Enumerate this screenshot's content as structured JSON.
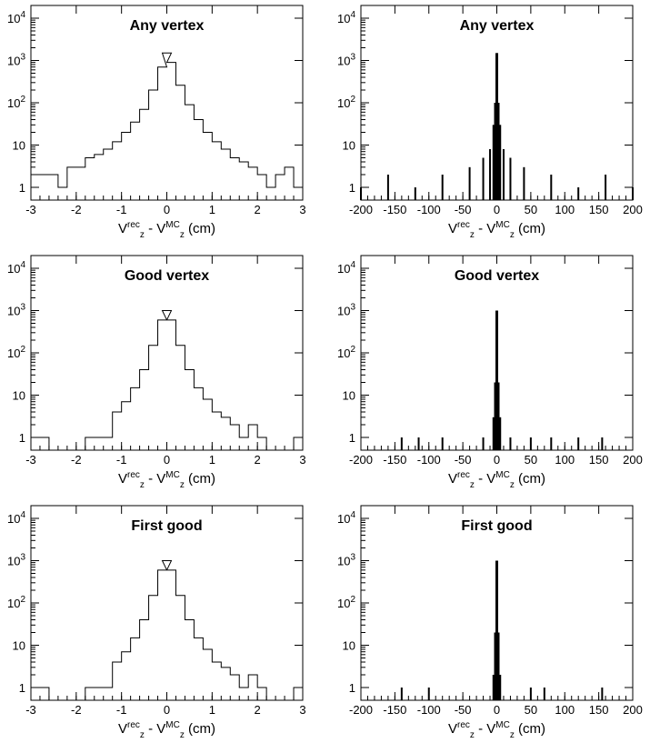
{
  "chart_data": [
    {
      "type": "histogram",
      "title": "Any vertex",
      "xlabel": "V_z^rec - V_z^MC (cm)",
      "y_scale": "log",
      "ylim": [
        0.5,
        20000
      ],
      "xlim": [
        -3,
        3
      ],
      "grid": false,
      "xticks": [
        "-3",
        "-2",
        "-1",
        "0",
        "1",
        "2",
        "3"
      ],
      "yticks": [
        "1",
        "10",
        "10^2",
        "10^3",
        "10^4"
      ],
      "points": [
        [
          -2.9,
          2
        ],
        [
          -2.7,
          2
        ],
        [
          -2.5,
          2
        ],
        [
          -2.3,
          1
        ],
        [
          -2.1,
          3
        ],
        [
          -1.9,
          3
        ],
        [
          -1.7,
          5
        ],
        [
          -1.5,
          6
        ],
        [
          -1.3,
          8
        ],
        [
          -1.1,
          12
        ],
        [
          -0.9,
          20
        ],
        [
          -0.7,
          35
        ],
        [
          -0.5,
          70
        ],
        [
          -0.3,
          200
        ],
        [
          -0.1,
          700
        ],
        [
          0.0,
          1500
        ],
        [
          0.1,
          900
        ],
        [
          0.3,
          260
        ],
        [
          0.5,
          90
        ],
        [
          0.7,
          40
        ],
        [
          0.9,
          20
        ],
        [
          1.1,
          12
        ],
        [
          1.3,
          8
        ],
        [
          1.5,
          5
        ],
        [
          1.7,
          4
        ],
        [
          1.9,
          3
        ],
        [
          2.1,
          2
        ],
        [
          2.3,
          1
        ],
        [
          2.5,
          2
        ],
        [
          2.7,
          3
        ],
        [
          2.9,
          1
        ]
      ]
    },
    {
      "type": "histogram",
      "title": "Any vertex",
      "xlabel": "V_z^rec - V_z^MC (cm)",
      "y_scale": "log",
      "ylim": [
        0.5,
        20000
      ],
      "xlim": [
        -200,
        200
      ],
      "grid": false,
      "xticks": [
        "-200",
        "-150",
        "-100",
        "-50",
        "0",
        "50",
        "100",
        "150",
        "200"
      ],
      "yticks": [
        "1",
        "10",
        "10^2",
        "10^3",
        "10^4"
      ],
      "points": [
        [
          -200,
          1
        ],
        [
          -160,
          2
        ],
        [
          -120,
          1
        ],
        [
          -80,
          2
        ],
        [
          -40,
          3
        ],
        [
          -20,
          5
        ],
        [
          -10,
          8
        ],
        [
          -5,
          30
        ],
        [
          -2,
          100
        ],
        [
          0,
          1500
        ],
        [
          2,
          100
        ],
        [
          5,
          30
        ],
        [
          10,
          8
        ],
        [
          20,
          5
        ],
        [
          40,
          3
        ],
        [
          80,
          2
        ],
        [
          120,
          1
        ],
        [
          160,
          2
        ],
        [
          200,
          1
        ]
      ]
    },
    {
      "type": "histogram",
      "title": "Good vertex",
      "xlabel": "V_z^rec - V_z^MC (cm)",
      "y_scale": "log",
      "ylim": [
        0.5,
        20000
      ],
      "xlim": [
        -3,
        3
      ],
      "grid": false,
      "xticks": [
        "-3",
        "-2",
        "-1",
        "0",
        "1",
        "2",
        "3"
      ],
      "yticks": [
        "1",
        "10",
        "10^2",
        "10^3",
        "10^4"
      ],
      "points": [
        [
          -2.9,
          1
        ],
        [
          -2.7,
          1
        ],
        [
          -2.5,
          0
        ],
        [
          -2.3,
          0
        ],
        [
          -2.1,
          0
        ],
        [
          -1.9,
          0
        ],
        [
          -1.7,
          1
        ],
        [
          -1.5,
          1
        ],
        [
          -1.3,
          1
        ],
        [
          -1.1,
          4
        ],
        [
          -0.9,
          7
        ],
        [
          -0.7,
          15
        ],
        [
          -0.5,
          40
        ],
        [
          -0.3,
          150
        ],
        [
          -0.1,
          600
        ],
        [
          0.0,
          1000
        ],
        [
          0.1,
          600
        ],
        [
          0.3,
          150
        ],
        [
          0.5,
          40
        ],
        [
          0.7,
          15
        ],
        [
          0.9,
          8
        ],
        [
          1.1,
          4
        ],
        [
          1.3,
          3
        ],
        [
          1.5,
          2
        ],
        [
          1.7,
          1
        ],
        [
          1.9,
          2
        ],
        [
          2.1,
          1
        ],
        [
          2.3,
          0
        ],
        [
          2.5,
          0
        ],
        [
          2.7,
          0
        ],
        [
          2.9,
          1
        ]
      ]
    },
    {
      "type": "histogram",
      "title": "Good vertex",
      "xlabel": "V_z^rec - V_z^MC (cm)",
      "y_scale": "log",
      "ylim": [
        0.5,
        20000
      ],
      "xlim": [
        -200,
        200
      ],
      "grid": false,
      "xticks": [
        "-200",
        "-150",
        "-100",
        "-50",
        "0",
        "50",
        "100",
        "150",
        "200"
      ],
      "yticks": [
        "1",
        "10",
        "10^2",
        "10^3",
        "10^4"
      ],
      "points": [
        [
          -140,
          1
        ],
        [
          -115,
          1
        ],
        [
          -80,
          1
        ],
        [
          -20,
          1
        ],
        [
          -5,
          3
        ],
        [
          -2,
          20
        ],
        [
          0,
          1000
        ],
        [
          2,
          20
        ],
        [
          5,
          3
        ],
        [
          20,
          1
        ],
        [
          50,
          1
        ],
        [
          80,
          1
        ],
        [
          120,
          1
        ],
        [
          155,
          1
        ]
      ]
    },
    {
      "type": "histogram",
      "title": "First good",
      "xlabel": "V_z^rec - V_z^MC (cm)",
      "y_scale": "log",
      "ylim": [
        0.5,
        20000
      ],
      "xlim": [
        -3,
        3
      ],
      "grid": false,
      "xticks": [
        "-3",
        "-2",
        "-1",
        "0",
        "1",
        "2",
        "3"
      ],
      "yticks": [
        "1",
        "10",
        "10^2",
        "10^3",
        "10^4"
      ],
      "points": [
        [
          -2.9,
          1
        ],
        [
          -2.7,
          1
        ],
        [
          -2.5,
          0
        ],
        [
          -2.3,
          0
        ],
        [
          -2.1,
          0
        ],
        [
          -1.9,
          0
        ],
        [
          -1.7,
          1
        ],
        [
          -1.5,
          1
        ],
        [
          -1.3,
          1
        ],
        [
          -1.1,
          4
        ],
        [
          -0.9,
          7
        ],
        [
          -0.7,
          15
        ],
        [
          -0.5,
          40
        ],
        [
          -0.3,
          150
        ],
        [
          -0.1,
          600
        ],
        [
          0.0,
          1000
        ],
        [
          0.1,
          600
        ],
        [
          0.3,
          150
        ],
        [
          0.5,
          40
        ],
        [
          0.7,
          15
        ],
        [
          0.9,
          8
        ],
        [
          1.1,
          4
        ],
        [
          1.3,
          3
        ],
        [
          1.5,
          2
        ],
        [
          1.7,
          1
        ],
        [
          1.9,
          2
        ],
        [
          2.1,
          1
        ],
        [
          2.3,
          0
        ],
        [
          2.5,
          0
        ],
        [
          2.7,
          0
        ],
        [
          2.9,
          1
        ]
      ]
    },
    {
      "type": "histogram",
      "title": "First good",
      "xlabel": "V_z^rec - V_z^MC (cm)",
      "y_scale": "log",
      "ylim": [
        0.5,
        20000
      ],
      "xlim": [
        -200,
        200
      ],
      "grid": false,
      "xticks": [
        "-200",
        "-150",
        "-100",
        "-50",
        "0",
        "50",
        "100",
        "150",
        "200"
      ],
      "yticks": [
        "1",
        "10",
        "10^2",
        "10^3",
        "10^4"
      ],
      "points": [
        [
          -140,
          1
        ],
        [
          -100,
          1
        ],
        [
          -5,
          2
        ],
        [
          -2,
          20
        ],
        [
          0,
          1000
        ],
        [
          2,
          20
        ],
        [
          5,
          2
        ],
        [
          50,
          1
        ],
        [
          70,
          1
        ],
        [
          155,
          1
        ]
      ]
    }
  ]
}
